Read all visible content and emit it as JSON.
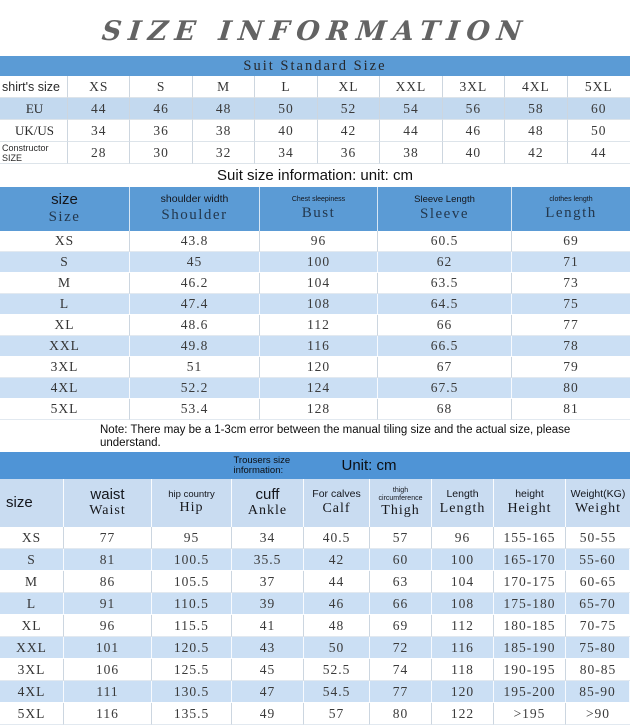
{
  "title": "SIZE INFORMATION",
  "colors": {
    "header_blue": "#5b9bd5",
    "trousers_bar_blue": "#4f94d6",
    "stripe_light_blue": "#cbdff4",
    "eu_row_blue": "#c3d9ef",
    "trousers_header_row": "#c9dcf1",
    "title_gray": "#636363"
  },
  "suit_standard": {
    "header": "Suit Standard Size",
    "row_label_header": "shirt's size",
    "sizes": [
      "XS",
      "S",
      "M",
      "L",
      "XL",
      "XXL",
      "3XL",
      "4XL",
      "5XL"
    ],
    "rows": [
      {
        "label": "EU",
        "values": [
          "44",
          "46",
          "48",
          "50",
          "52",
          "54",
          "56",
          "58",
          "60"
        ]
      },
      {
        "label": "UK/US",
        "values": [
          "34",
          "36",
          "38",
          "40",
          "42",
          "44",
          "46",
          "48",
          "50"
        ]
      },
      {
        "label": "Constructor SIZE",
        "values": [
          "28",
          "30",
          "32",
          "34",
          "36",
          "38",
          "40",
          "42",
          "44"
        ]
      }
    ]
  },
  "suit_info": {
    "caption": "Suit size information: unit: cm",
    "columns": [
      {
        "top": "size",
        "main": "Size"
      },
      {
        "top": "shoulder width",
        "main": "Shoulder"
      },
      {
        "top": "Chest sleepiness",
        "main": "Bust"
      },
      {
        "top": "Sleeve Length",
        "main": "Sleeve"
      },
      {
        "top": "clothes length",
        "main": "Length"
      }
    ],
    "rows": [
      [
        "XS",
        "43.8",
        "96",
        "60.5",
        "69"
      ],
      [
        "S",
        "45",
        "100",
        "62",
        "71"
      ],
      [
        "M",
        "46.2",
        "104",
        "63.5",
        "73"
      ],
      [
        "L",
        "47.4",
        "108",
        "64.5",
        "75"
      ],
      [
        "XL",
        "48.6",
        "112",
        "66",
        "77"
      ],
      [
        "XXL",
        "49.8",
        "116",
        "66.5",
        "78"
      ],
      [
        "3XL",
        "51",
        "120",
        "67",
        "79"
      ],
      [
        "4XL",
        "52.2",
        "124",
        "67.5",
        "80"
      ],
      [
        "5XL",
        "53.4",
        "128",
        "68",
        "81"
      ]
    ]
  },
  "note": "Note: There may be a 1-3cm error between the manual tiling size and the actual size, please understand.",
  "trousers": {
    "header_small": "Trousers size information:",
    "header_unit": "Unit: cm",
    "columns": [
      {
        "top": "size",
        "main": ""
      },
      {
        "top": "waist",
        "main": "Waist"
      },
      {
        "top": "hip country",
        "main": "Hip"
      },
      {
        "top": "cuff",
        "main": "Ankle"
      },
      {
        "top": "For calves",
        "main": "Calf"
      },
      {
        "top": "thigh circumference",
        "main": "Thigh"
      },
      {
        "top": "Length",
        "main": "Length"
      },
      {
        "top": "height",
        "main": "Height"
      },
      {
        "top": "Weight(KG)",
        "main": "Weight"
      }
    ],
    "rows": [
      [
        "XS",
        "77",
        "95",
        "34",
        "40.5",
        "57",
        "96",
        "155-165",
        "50-55"
      ],
      [
        "S",
        "81",
        "100.5",
        "35.5",
        "42",
        "60",
        "100",
        "165-170",
        "55-60"
      ],
      [
        "M",
        "86",
        "105.5",
        "37",
        "44",
        "63",
        "104",
        "170-175",
        "60-65"
      ],
      [
        "L",
        "91",
        "110.5",
        "39",
        "46",
        "66",
        "108",
        "175-180",
        "65-70"
      ],
      [
        "XL",
        "96",
        "115.5",
        "41",
        "48",
        "69",
        "112",
        "180-185",
        "70-75"
      ],
      [
        "XXL",
        "101",
        "120.5",
        "43",
        "50",
        "72",
        "116",
        "185-190",
        "75-80"
      ],
      [
        "3XL",
        "106",
        "125.5",
        "45",
        "52.5",
        "74",
        "118",
        "190-195",
        "80-85"
      ],
      [
        "4XL",
        "111",
        "130.5",
        "47",
        "54.5",
        "77",
        "120",
        "195-200",
        "85-90"
      ],
      [
        "5XL",
        "116",
        "135.5",
        "49",
        "57",
        "80",
        "122",
        ">195",
        ">90"
      ]
    ]
  }
}
